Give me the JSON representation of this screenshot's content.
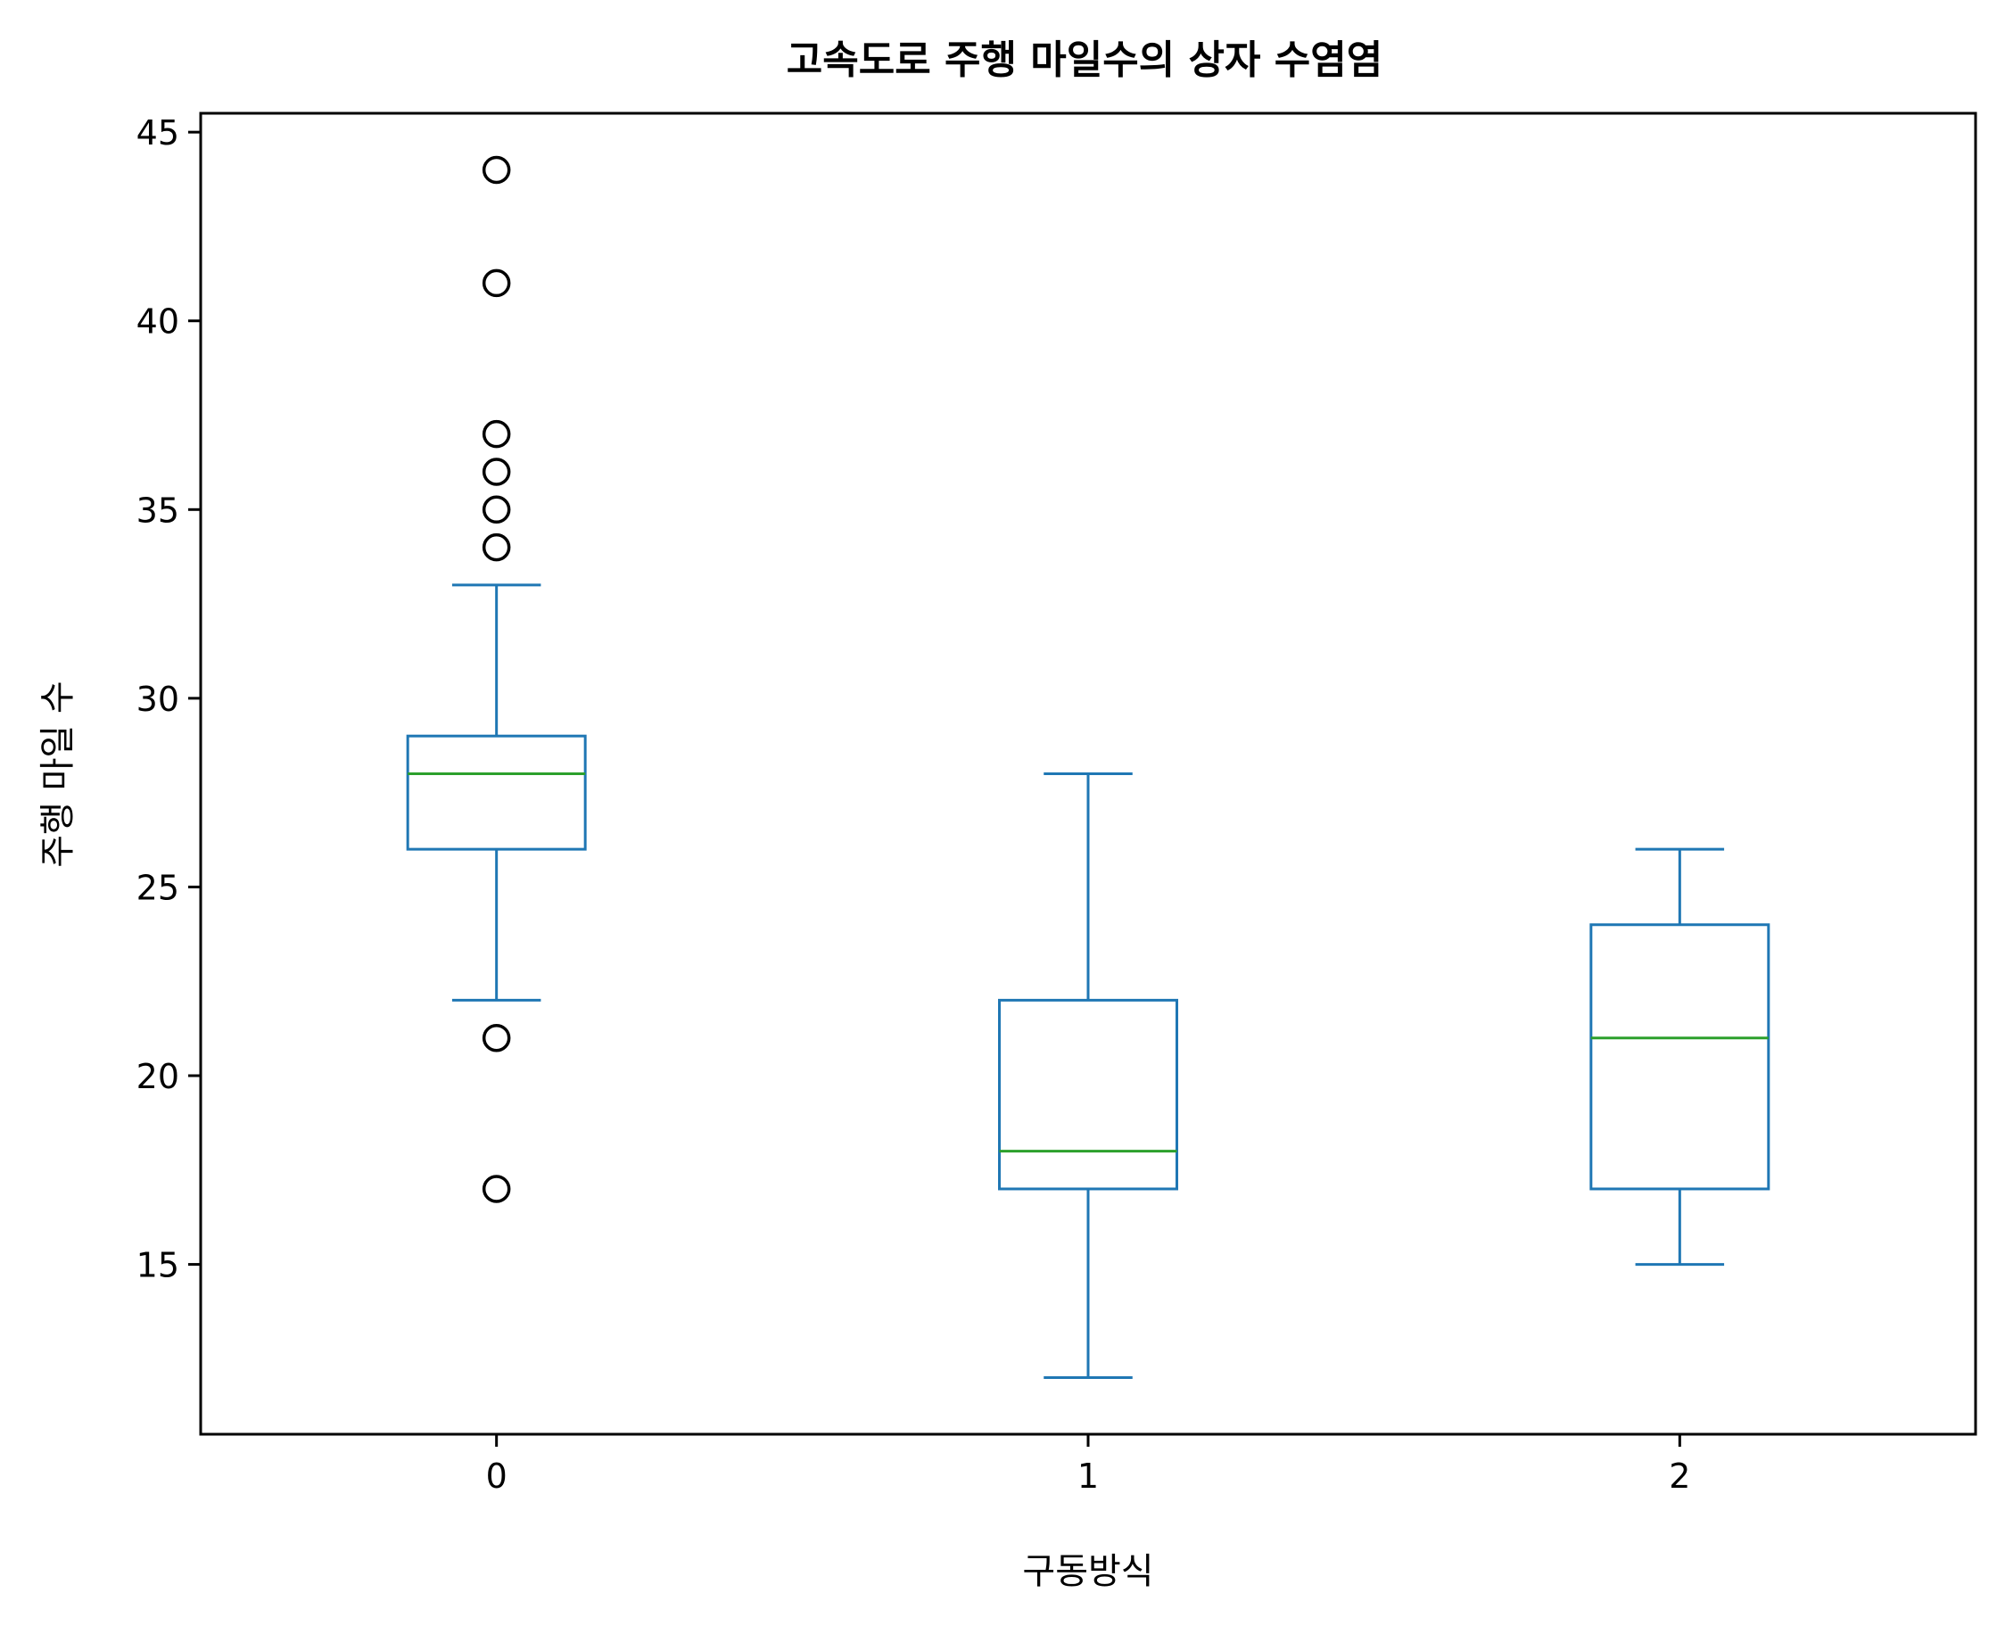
{
  "chart_data": {
    "type": "box",
    "title": "고속도로 주행 마일수의 상자 수염염",
    "xlabel": "구동방식",
    "ylabel": "주행 마일 수",
    "categories": [
      "0",
      "1",
      "2"
    ],
    "ylim": [
      10.5,
      45.5
    ],
    "yticks": [
      15,
      20,
      25,
      30,
      35,
      40,
      45
    ],
    "boxes": [
      {
        "category": "0",
        "whisker_low": 22,
        "q1": 26,
        "median": 28,
        "q3": 29,
        "whisker_high": 33,
        "outliers": [
          44,
          41,
          37,
          36,
          35,
          34,
          21,
          17
        ]
      },
      {
        "category": "1",
        "whisker_low": 12,
        "q1": 17,
        "median": 18,
        "q3": 22,
        "whisker_high": 28,
        "outliers": []
      },
      {
        "category": "2",
        "whisker_low": 15,
        "q1": 17,
        "median": 21,
        "q3": 24,
        "whisker_high": 26,
        "outliers": []
      }
    ],
    "colors": {
      "box": "#1f77b4",
      "median": "#2ca02c",
      "outlier": "#000000",
      "axes": "#000000"
    },
    "grid": false
  }
}
